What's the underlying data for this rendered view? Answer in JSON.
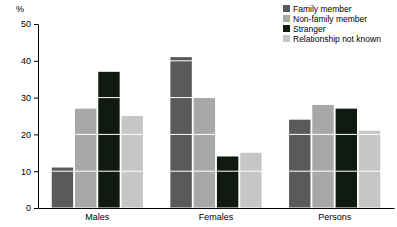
{
  "chart_data": {
    "type": "bar",
    "y_label": "%",
    "categories": [
      "Males",
      "Females",
      "Persons"
    ],
    "series": [
      {
        "name": "Family member",
        "color": "#5a5a5a",
        "values": [
          11,
          41,
          24
        ]
      },
      {
        "name": "Non-family member",
        "color": "#a8a8a8",
        "values": [
          27,
          30,
          28
        ]
      },
      {
        "name": "Stranger",
        "color": "#111a11",
        "values": [
          37,
          14,
          27
        ]
      },
      {
        "name": "Relationship not known",
        "color": "#c6c6c6",
        "values": [
          25,
          15,
          21
        ]
      }
    ],
    "ylim": [
      0,
      50
    ],
    "yticks": [
      0,
      10,
      20,
      30,
      40,
      50
    ],
    "grid": true,
    "legend": "upper right"
  }
}
